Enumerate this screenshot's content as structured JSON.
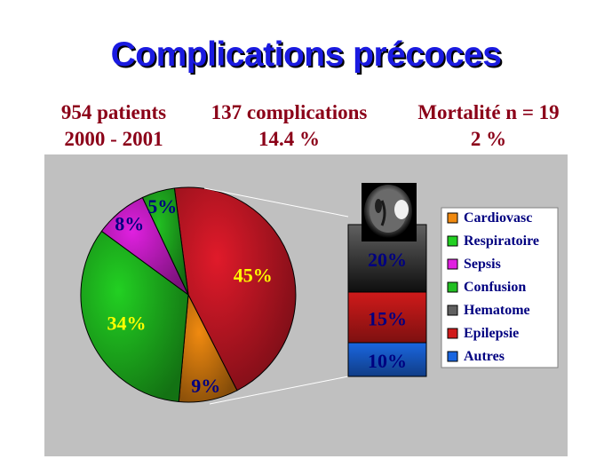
{
  "title": "Complications précoces",
  "stats": [
    {
      "line1": "954 patients",
      "line2": "2000 - 2001"
    },
    {
      "line1": "137 complications",
      "line2": "14.4 %"
    },
    {
      "line1": "Mortalité n = 19",
      "line2": "2 %"
    }
  ],
  "chart_data": [
    {
      "type": "pie",
      "categories": [
        "Epilepsie",
        "Cardiovasc",
        "Respiratoire",
        "Sepsis",
        "Confusion"
      ],
      "values": [
        45,
        9,
        34,
        8,
        5
      ],
      "labels": [
        "45%",
        "9%",
        "34%",
        "8%",
        "5%"
      ],
      "colors": [
        "#e01a2a",
        "#f08a10",
        "#22d022",
        "#e020e0",
        "#22c022"
      ]
    },
    {
      "type": "bar",
      "stacked": true,
      "categories": [
        "Autres",
        "Epilepsie",
        "Hematome"
      ],
      "values": [
        10,
        15,
        20
      ],
      "labels": [
        "10%",
        "15%",
        "20%"
      ],
      "colors": [
        "#1a66e0",
        "#d01a1a",
        "#606060"
      ]
    }
  ],
  "legend": {
    "position": "right",
    "items": [
      {
        "label": "Cardiovasc",
        "color": "#f08a10"
      },
      {
        "label": "Respiratoire",
        "color": "#22d022"
      },
      {
        "label": "Sepsis",
        "color": "#e020e0"
      },
      {
        "label": "Confusion",
        "color": "#22c022"
      },
      {
        "label": "Hematome",
        "color": "#606060"
      },
      {
        "label": "Epilepsie",
        "color": "#d01a1a"
      },
      {
        "label": "Autres",
        "color": "#1a66e0"
      }
    ]
  },
  "colors": {
    "title": "#1a1ae0",
    "stats": "#8b0018",
    "plot_background": "#c0c0c0",
    "legend_text": "#000080"
  },
  "image": "brain-ct-scan"
}
